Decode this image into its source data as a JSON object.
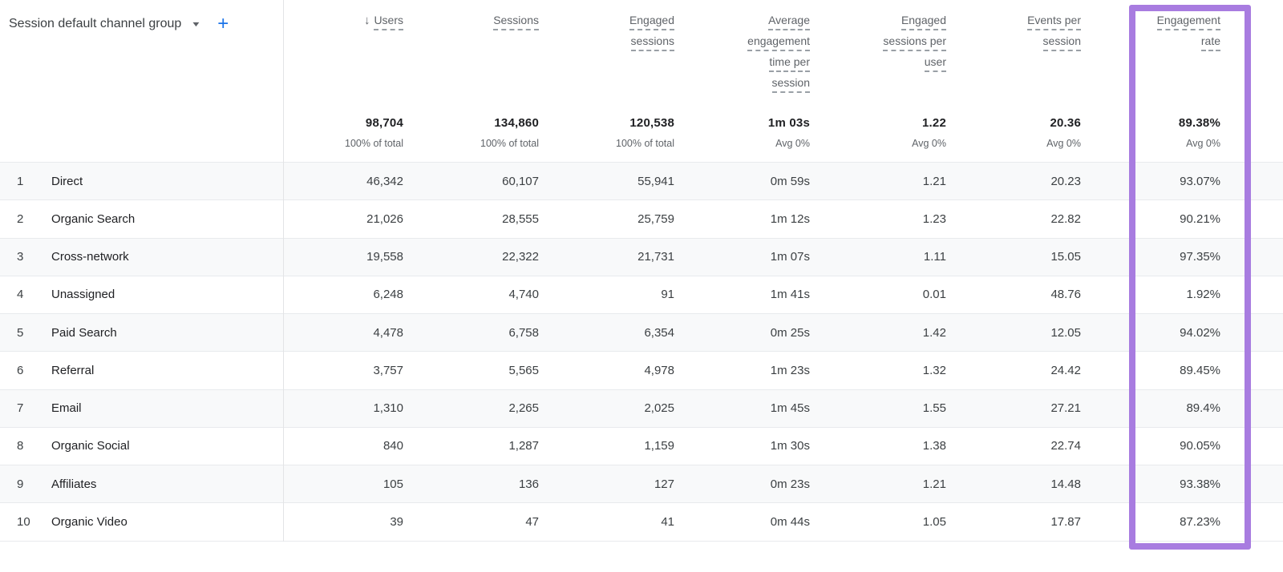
{
  "colors": {
    "highlight_purple": "#a87ce0",
    "accent_blue": "#1a73e8"
  },
  "icons": {
    "sort_desc_icon": "↓",
    "dropdown_arrow_icon": "▼",
    "add_icon": "+"
  },
  "dimension_picker": {
    "label": "Session default channel group"
  },
  "columns": [
    {
      "id": "users",
      "lines": [
        "Users"
      ],
      "sorted_desc": true,
      "total": "98,704",
      "total_sub": "100% of total"
    },
    {
      "id": "sessions",
      "lines": [
        "Sessions"
      ],
      "sorted_desc": false,
      "total": "134,860",
      "total_sub": "100% of total"
    },
    {
      "id": "engaged_sessions",
      "lines": [
        "Engaged",
        "sessions"
      ],
      "sorted_desc": false,
      "total": "120,538",
      "total_sub": "100% of total"
    },
    {
      "id": "avg_engagement_time_per_session",
      "lines": [
        "Average",
        "engagement",
        "time per",
        "session"
      ],
      "sorted_desc": false,
      "total": "1m 03s",
      "total_sub": "Avg 0%"
    },
    {
      "id": "engaged_sessions_per_user",
      "lines": [
        "Engaged",
        "sessions per",
        "user"
      ],
      "sorted_desc": false,
      "total": "1.22",
      "total_sub": "Avg 0%"
    },
    {
      "id": "events_per_session",
      "lines": [
        "Events per",
        "session"
      ],
      "sorted_desc": false,
      "total": "20.36",
      "total_sub": "Avg 0%"
    },
    {
      "id": "engagement_rate",
      "lines": [
        "Engagement",
        "rate"
      ],
      "sorted_desc": false,
      "total": "89.38%",
      "total_sub": "Avg 0%",
      "highlighted": true
    }
  ],
  "rows": [
    {
      "index": "1",
      "channel": "Direct",
      "values": [
        "46,342",
        "60,107",
        "55,941",
        "0m 59s",
        "1.21",
        "20.23",
        "93.07%"
      ]
    },
    {
      "index": "2",
      "channel": "Organic Search",
      "values": [
        "21,026",
        "28,555",
        "25,759",
        "1m 12s",
        "1.23",
        "22.82",
        "90.21%"
      ]
    },
    {
      "index": "3",
      "channel": "Cross-network",
      "values": [
        "19,558",
        "22,322",
        "21,731",
        "1m 07s",
        "1.11",
        "15.05",
        "97.35%"
      ]
    },
    {
      "index": "4",
      "channel": "Unassigned",
      "values": [
        "6,248",
        "4,740",
        "91",
        "1m 41s",
        "0.01",
        "48.76",
        "1.92%"
      ]
    },
    {
      "index": "5",
      "channel": "Paid Search",
      "values": [
        "4,478",
        "6,758",
        "6,354",
        "0m 25s",
        "1.42",
        "12.05",
        "94.02%"
      ]
    },
    {
      "index": "6",
      "channel": "Referral",
      "values": [
        "3,757",
        "5,565",
        "4,978",
        "1m 23s",
        "1.32",
        "24.42",
        "89.45%"
      ]
    },
    {
      "index": "7",
      "channel": "Email",
      "values": [
        "1,310",
        "2,265",
        "2,025",
        "1m 45s",
        "1.55",
        "27.21",
        "89.4%"
      ]
    },
    {
      "index": "8",
      "channel": "Organic Social",
      "values": [
        "840",
        "1,287",
        "1,159",
        "1m 30s",
        "1.38",
        "22.74",
        "90.05%"
      ]
    },
    {
      "index": "9",
      "channel": "Affiliates",
      "values": [
        "105",
        "136",
        "127",
        "0m 23s",
        "1.21",
        "14.48",
        "93.38%"
      ]
    },
    {
      "index": "10",
      "channel": "Organic Video",
      "values": [
        "39",
        "47",
        "41",
        "0m 44s",
        "1.05",
        "17.87",
        "87.23%"
      ]
    }
  ]
}
